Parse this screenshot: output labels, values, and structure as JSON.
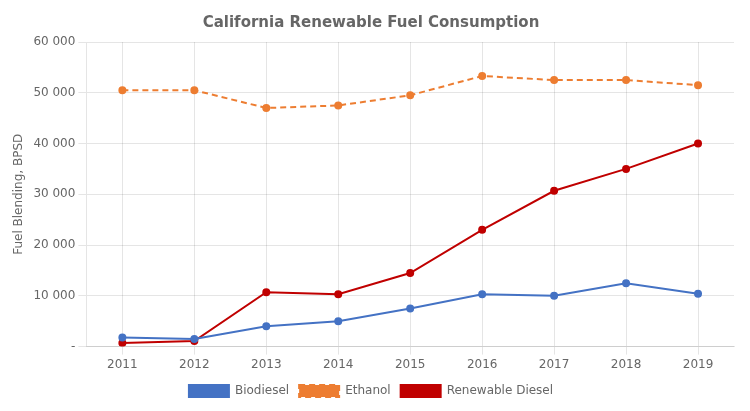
{
  "chart_data": {
    "type": "line",
    "title": "California Renewable Fuel Consumption",
    "y_label": "Fuel Blending, BPSD",
    "categories": [
      "2011",
      "2012",
      "2013",
      "2014",
      "2015",
      "2016",
      "2017",
      "2018",
      "2019"
    ],
    "series": [
      {
        "name": "Biodiesel",
        "color": "#4472c4",
        "marker": "circle",
        "line_style": "solid",
        "values": [
          1800,
          1500,
          4000,
          5000,
          7500,
          10300,
          10000,
          12500,
          10400
        ]
      },
      {
        "name": "Ethanol",
        "color": "#ed7d31",
        "marker": "circle",
        "line_style": "dashed",
        "values": [
          50500,
          50500,
          47000,
          47500,
          49500,
          53300,
          52500,
          52500,
          51500
        ]
      },
      {
        "name": "Renewable Diesel",
        "color": "#c00000",
        "marker": "circle",
        "line_style": "solid",
        "values": [
          700,
          1100,
          10700,
          10300,
          14500,
          23000,
          30700,
          35000,
          40000
        ]
      }
    ],
    "ylim": [
      0,
      60000
    ],
    "yticks": [
      {
        "value": 0,
        "label": "-"
      },
      {
        "value": 10000,
        "label": "10 000"
      },
      {
        "value": 20000,
        "label": "20 000"
      },
      {
        "value": 30000,
        "label": "30 000"
      },
      {
        "value": 40000,
        "label": "40 000"
      },
      {
        "value": 50000,
        "label": "50 000"
      },
      {
        "value": 60000,
        "label": "60 000"
      }
    ],
    "grid": true,
    "legend": "bottom"
  }
}
